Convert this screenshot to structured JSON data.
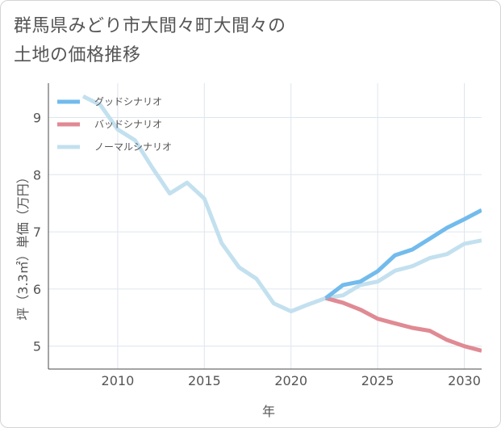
{
  "page": {
    "title_line1": "群馬県みどり市大間々町大間々の",
    "title_line2": "土地の価格推移"
  },
  "chart_data": {
    "type": "line",
    "title": "群馬県みどり市大間々町大間々の土地の価格推移",
    "xlabel": "年",
    "ylabel": "坪（3.3㎡）単価（万円）",
    "xlim": [
      2006,
      2031
    ],
    "ylim": [
      4.6,
      9.6
    ],
    "xticks": [
      2010,
      2015,
      2020,
      2025,
      2030
    ],
    "yticks": [
      5,
      6,
      7,
      8,
      9
    ],
    "grid": true,
    "legend_position": "top-left",
    "series": [
      {
        "name": "ノーマルシナリオ",
        "color": "#c3e0ef",
        "x": [
          2008,
          2009,
          2010,
          2011,
          2012,
          2013,
          2014,
          2015,
          2016,
          2017,
          2018,
          2019,
          2020,
          2021,
          2022,
          2023,
          2024,
          2025,
          2026,
          2027,
          2028,
          2029,
          2030,
          2031
        ],
        "values": [
          9.37,
          9.22,
          8.79,
          8.6,
          8.12,
          7.67,
          7.86,
          7.58,
          6.8,
          6.38,
          6.18,
          5.75,
          5.61,
          5.73,
          5.84,
          5.89,
          6.07,
          6.13,
          6.32,
          6.4,
          6.54,
          6.61,
          6.79,
          6.85
        ]
      },
      {
        "name": "バッドシナリオ",
        "color": "#e08a93",
        "x": [
          2022,
          2023,
          2024,
          2025,
          2026,
          2027,
          2028,
          2029,
          2030,
          2031
        ],
        "values": [
          5.84,
          5.76,
          5.64,
          5.48,
          5.4,
          5.32,
          5.27,
          5.11,
          5.0,
          4.92
        ]
      },
      {
        "name": "グッドシナリオ",
        "color": "#72bbec",
        "x": [
          2022,
          2023,
          2024,
          2025,
          2026,
          2027,
          2028,
          2029,
          2030,
          2031
        ],
        "values": [
          5.84,
          6.07,
          6.13,
          6.31,
          6.59,
          6.69,
          6.88,
          7.07,
          7.22,
          7.38
        ]
      }
    ],
    "legend": [
      {
        "name": "グッドシナリオ",
        "color": "#72bbec"
      },
      {
        "name": "バッドシナリオ",
        "color": "#e08a93"
      },
      {
        "name": "ノーマルシナリオ",
        "color": "#c3e0ef"
      }
    ]
  }
}
